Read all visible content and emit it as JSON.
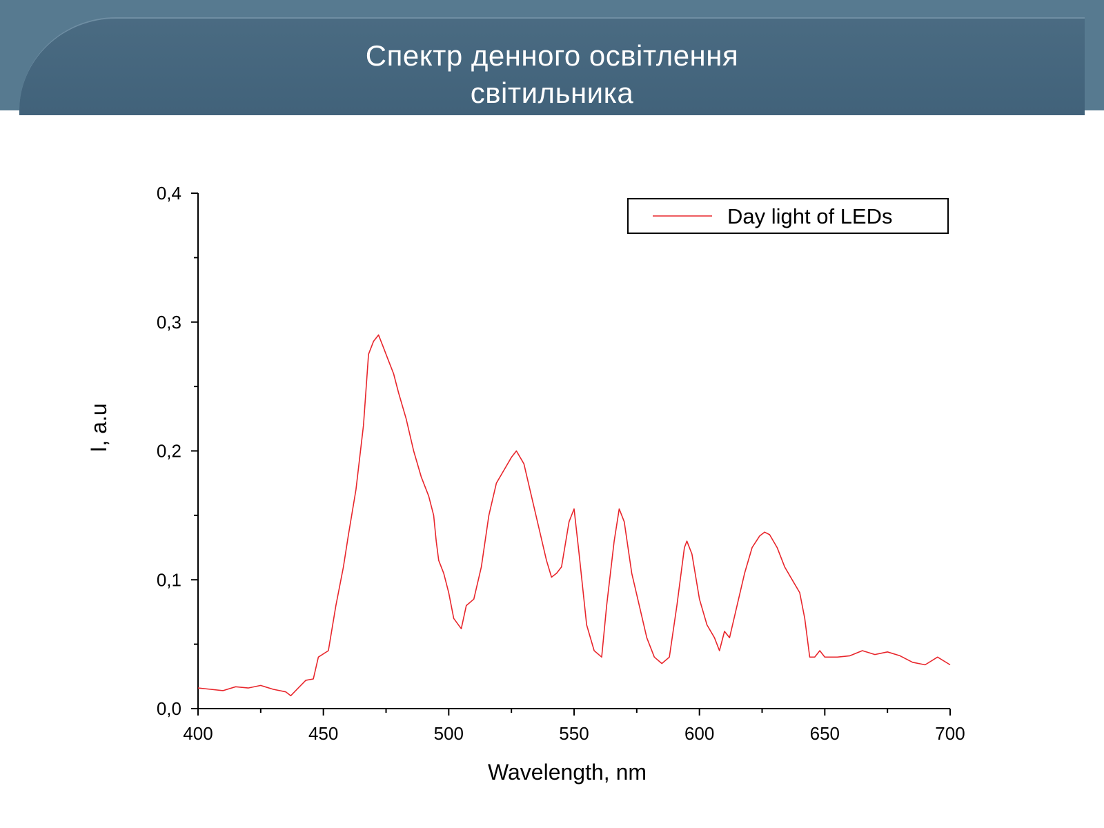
{
  "slide": {
    "title_line1": "Спектр денного освітлення",
    "title_line2": "світильника"
  },
  "colors": {
    "header": "#4a6b82",
    "series": "#e8262c",
    "axis": "#000000"
  },
  "chart_data": {
    "type": "line",
    "title": "",
    "xlabel": "Wavelength, nm",
    "ylabel": "I, a.u",
    "xlim": [
      400,
      700
    ],
    "ylim": [
      0,
      0.4
    ],
    "x_ticks": [
      400,
      450,
      500,
      550,
      600,
      650,
      700
    ],
    "x_tick_labels": [
      "400",
      "450",
      "500",
      "550",
      "600",
      "650",
      "700"
    ],
    "y_ticks": [
      0,
      0.1,
      0.2,
      0.3,
      0.4
    ],
    "y_tick_labels": [
      "0,0",
      "0,1",
      "0,2",
      "0,3",
      "0,4"
    ],
    "legend": {
      "position": "top-right",
      "entries": [
        "Day light of LEDs"
      ]
    },
    "series": [
      {
        "name": "Day light of LEDs",
        "x": [
          400,
          405,
          410,
          415,
          420,
          425,
          430,
          435,
          437,
          440,
          443,
          446,
          448,
          452,
          455,
          458,
          460,
          463,
          466,
          468,
          470,
          472,
          474,
          476,
          478,
          480,
          483,
          486,
          489,
          492,
          494,
          495,
          496,
          498,
          500,
          502,
          505,
          507,
          510,
          513,
          516,
          519,
          522,
          525,
          527,
          530,
          533,
          536,
          539,
          541,
          543,
          545,
          548,
          550,
          552,
          555,
          558,
          561,
          563,
          566,
          568,
          570,
          573,
          576,
          579,
          582,
          585,
          588,
          591,
          594,
          595,
          597,
          600,
          603,
          606,
          608,
          610,
          612,
          615,
          618,
          621,
          624,
          626,
          628,
          631,
          634,
          637,
          640,
          642,
          644,
          646,
          648,
          650,
          655,
          660,
          665,
          670,
          675,
          680,
          685,
          690,
          695,
          700
        ],
        "y": [
          0.016,
          0.015,
          0.014,
          0.017,
          0.016,
          0.018,
          0.015,
          0.013,
          0.01,
          0.016,
          0.022,
          0.023,
          0.04,
          0.045,
          0.08,
          0.11,
          0.135,
          0.17,
          0.22,
          0.275,
          0.285,
          0.29,
          0.28,
          0.27,
          0.26,
          0.245,
          0.225,
          0.2,
          0.18,
          0.165,
          0.15,
          0.13,
          0.115,
          0.105,
          0.09,
          0.07,
          0.062,
          0.08,
          0.085,
          0.11,
          0.15,
          0.175,
          0.185,
          0.195,
          0.2,
          0.19,
          0.165,
          0.14,
          0.115,
          0.102,
          0.105,
          0.11,
          0.145,
          0.155,
          0.12,
          0.065,
          0.045,
          0.04,
          0.08,
          0.13,
          0.155,
          0.145,
          0.105,
          0.08,
          0.055,
          0.04,
          0.035,
          0.04,
          0.08,
          0.125,
          0.13,
          0.12,
          0.085,
          0.065,
          0.055,
          0.045,
          0.06,
          0.055,
          0.08,
          0.105,
          0.125,
          0.134,
          0.137,
          0.135,
          0.125,
          0.11,
          0.1,
          0.09,
          0.07,
          0.04,
          0.04,
          0.045,
          0.04,
          0.04,
          0.041,
          0.045,
          0.042,
          0.044,
          0.041,
          0.036,
          0.034,
          0.04,
          0.034
        ]
      }
    ]
  }
}
